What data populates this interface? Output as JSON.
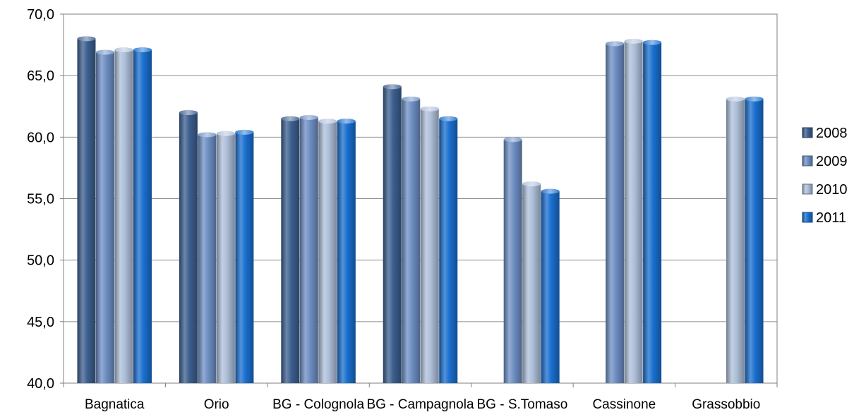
{
  "chart_data": {
    "type": "bar",
    "title": "",
    "xlabel": "",
    "ylabel": "",
    "ylim": [
      40,
      70
    ],
    "y_ticks": [
      "40,0",
      "45,0",
      "50,0",
      "55,0",
      "60,0",
      "65,0",
      "70,0"
    ],
    "y_tick_values": [
      40,
      45,
      50,
      55,
      60,
      65,
      70
    ],
    "grid": true,
    "legend_position": "right",
    "categories": [
      "Bagnatica",
      "Orio",
      "BG - Colognola",
      "BG - Campagnola",
      "BG - S.Tomaso",
      "Cassinone",
      "Grassobbio"
    ],
    "series": [
      {
        "name": "2008",
        "color": "#3c5f8f",
        "values": [
          68.0,
          62.0,
          61.5,
          64.1,
          null,
          null,
          null
        ]
      },
      {
        "name": "2009",
        "color": "#6e8fc4",
        "values": [
          66.9,
          60.2,
          61.6,
          63.1,
          59.8,
          67.6,
          null
        ]
      },
      {
        "name": "2010",
        "color": "#aebfd9",
        "values": [
          67.1,
          60.3,
          61.3,
          62.3,
          56.2,
          67.8,
          63.1
        ]
      },
      {
        "name": "2011",
        "color": "#1a6fcf",
        "values": [
          67.1,
          60.4,
          61.3,
          61.5,
          55.6,
          67.7,
          63.1
        ]
      }
    ]
  }
}
